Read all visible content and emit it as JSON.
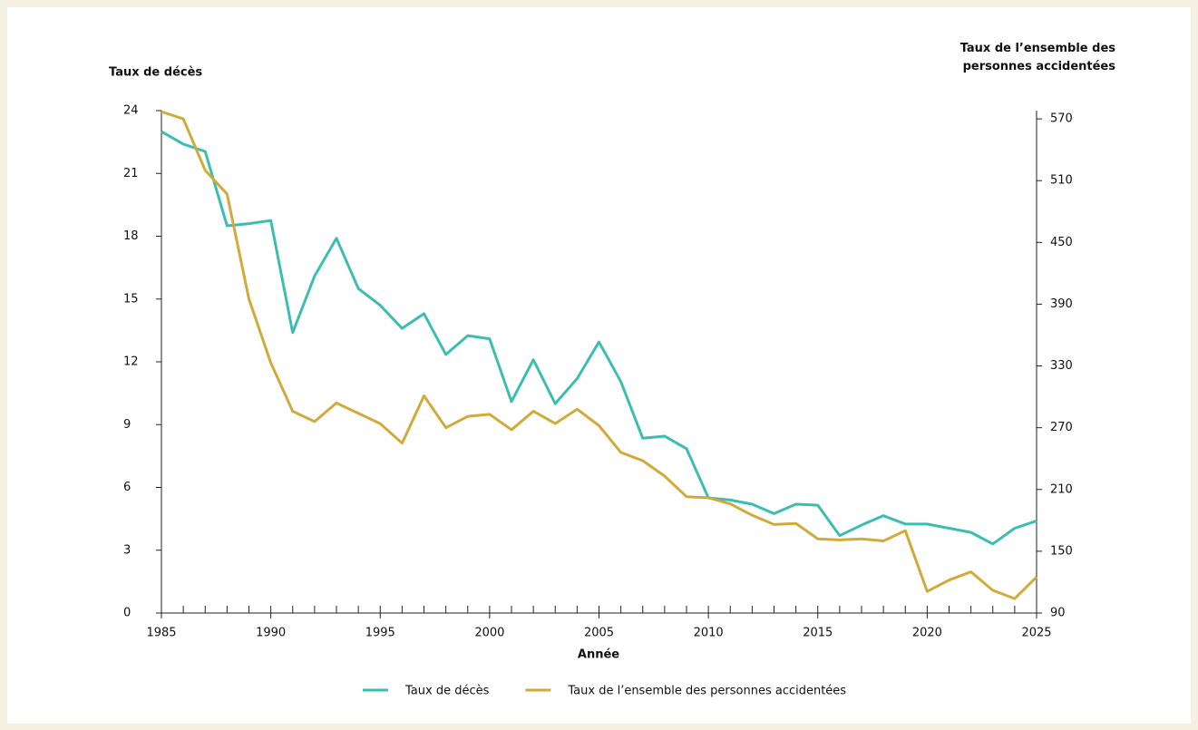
{
  "chart_data": {
    "type": "line",
    "ylabel": "Taux de décès",
    "y2label": "Taux de l’ensemble des personnes accidentées",
    "xlabel": "Année",
    "x": [
      1985,
      1986,
      1987,
      1988,
      1989,
      1990,
      1991,
      1992,
      1993,
      1994,
      1995,
      1996,
      1997,
      1998,
      1999,
      2000,
      2001,
      2002,
      2003,
      2004,
      2005,
      2006,
      2007,
      2008,
      2009,
      2010,
      2011,
      2012,
      2013,
      2014,
      2015,
      2016,
      2017,
      2018,
      2019,
      2020,
      2021,
      2022,
      2023,
      2024,
      2025
    ],
    "series": [
      {
        "name": "Taux de décès",
        "color": "#3cbdb2",
        "axis": "y",
        "values": [
          23.0,
          22.4,
          22.05,
          18.5,
          18.6,
          18.75,
          13.4,
          16.1,
          17.9,
          15.5,
          14.7,
          13.6,
          14.3,
          12.35,
          13.25,
          13.1,
          10.1,
          12.1,
          10.0,
          11.2,
          12.95,
          11.05,
          8.35,
          8.45,
          7.85,
          5.5,
          5.4,
          5.2,
          4.75,
          5.2,
          5.15,
          3.7,
          4.2,
          4.65,
          4.25,
          4.25,
          4.05,
          3.85,
          3.3,
          4.05,
          4.4
        ]
      },
      {
        "name": "Taux de l’ensemble des personnes accidentées",
        "color": "#d1aa3a",
        "axis": "y2",
        "values": [
          577,
          570,
          520,
          497,
          395,
          333,
          286,
          276,
          294,
          284,
          274,
          255,
          301,
          270,
          281,
          283,
          268,
          286,
          274,
          288,
          272,
          246,
          238,
          223,
          203,
          202,
          196,
          185,
          176,
          177,
          162,
          161,
          162,
          160,
          170,
          111,
          122,
          130,
          112,
          104,
          125
        ]
      }
    ],
    "xlim": [
      1985,
      2025
    ],
    "xticks": [
      1985,
      1990,
      1995,
      2000,
      2005,
      2010,
      2015,
      2020,
      2025
    ],
    "ylim": [
      0,
      24
    ],
    "yticks": [
      0,
      3,
      6,
      9,
      12,
      15,
      18,
      21,
      24
    ],
    "y2lim": [
      90,
      578
    ],
    "y2ticks": [
      90,
      150,
      210,
      270,
      330,
      390,
      450,
      510,
      570
    ],
    "legend": "bottom"
  }
}
